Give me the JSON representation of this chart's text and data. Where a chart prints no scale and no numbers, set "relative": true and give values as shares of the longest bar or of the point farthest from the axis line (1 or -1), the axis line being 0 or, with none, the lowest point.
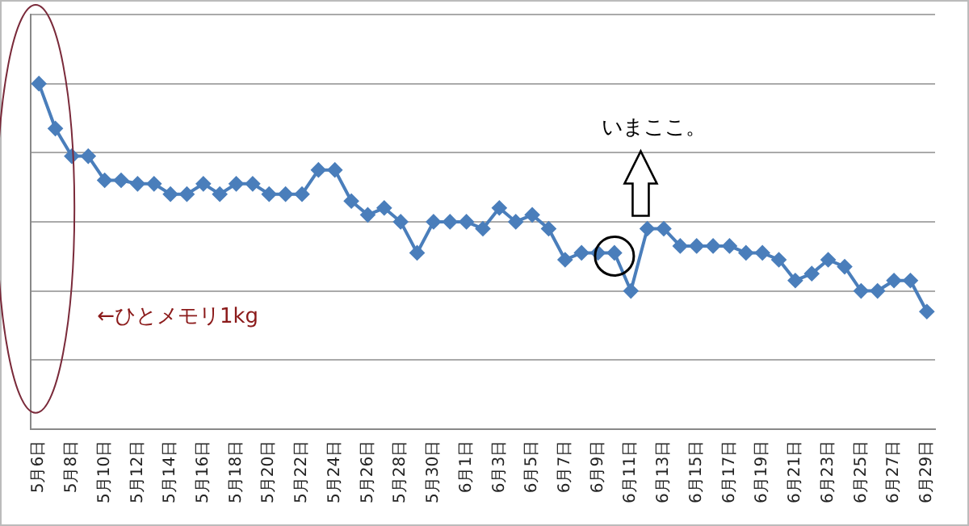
{
  "chart_data": {
    "type": "line",
    "relative": true,
    "grid": "y",
    "marker": "diamond",
    "line_style": "solid",
    "legend": false,
    "categories": [
      "5月6日",
      null,
      "5月8日",
      null,
      "5月10日",
      null,
      "5月12日",
      null,
      "5月14日",
      null,
      "5月16日",
      null,
      "5月18日",
      null,
      "5月20日",
      null,
      "5月22日",
      null,
      "5月24日",
      null,
      "5月26日",
      null,
      "5月28日",
      null,
      "5月30日",
      null,
      "6月1日",
      null,
      "6月3日",
      null,
      "6月5日",
      null,
      "6月7日",
      null,
      "6月9日",
      null,
      "6月11日",
      null,
      "6月13日",
      null,
      "6月15日",
      null,
      "6月17日",
      null,
      "6月19日",
      null,
      "6月21日",
      null,
      "6月23日",
      null,
      "6月25日",
      null,
      "6月27日",
      null,
      "6月29日"
    ],
    "series": [
      {
        "color": "#4a7ebb",
        "values": [
          1.0,
          0.87,
          0.79,
          0.79,
          0.72,
          0.72,
          0.71,
          0.71,
          0.68,
          0.68,
          0.71,
          0.68,
          0.71,
          0.71,
          0.68,
          0.68,
          0.68,
          0.75,
          0.75,
          0.66,
          0.62,
          0.64,
          0.6,
          0.51,
          0.6,
          0.6,
          0.6,
          0.58,
          0.64,
          0.6,
          0.62,
          0.58,
          0.49,
          0.51,
          0.51,
          0.51,
          0.4,
          0.58,
          0.58,
          0.53,
          0.53,
          0.53,
          0.53,
          0.51,
          0.51,
          0.49,
          0.43,
          0.45,
          0.49,
          0.47,
          0.4,
          0.4,
          0.43,
          0.43,
          0.34
        ]
      }
    ],
    "annotations": [
      "←ひとメモリ1kg",
      "いまここ。"
    ]
  }
}
